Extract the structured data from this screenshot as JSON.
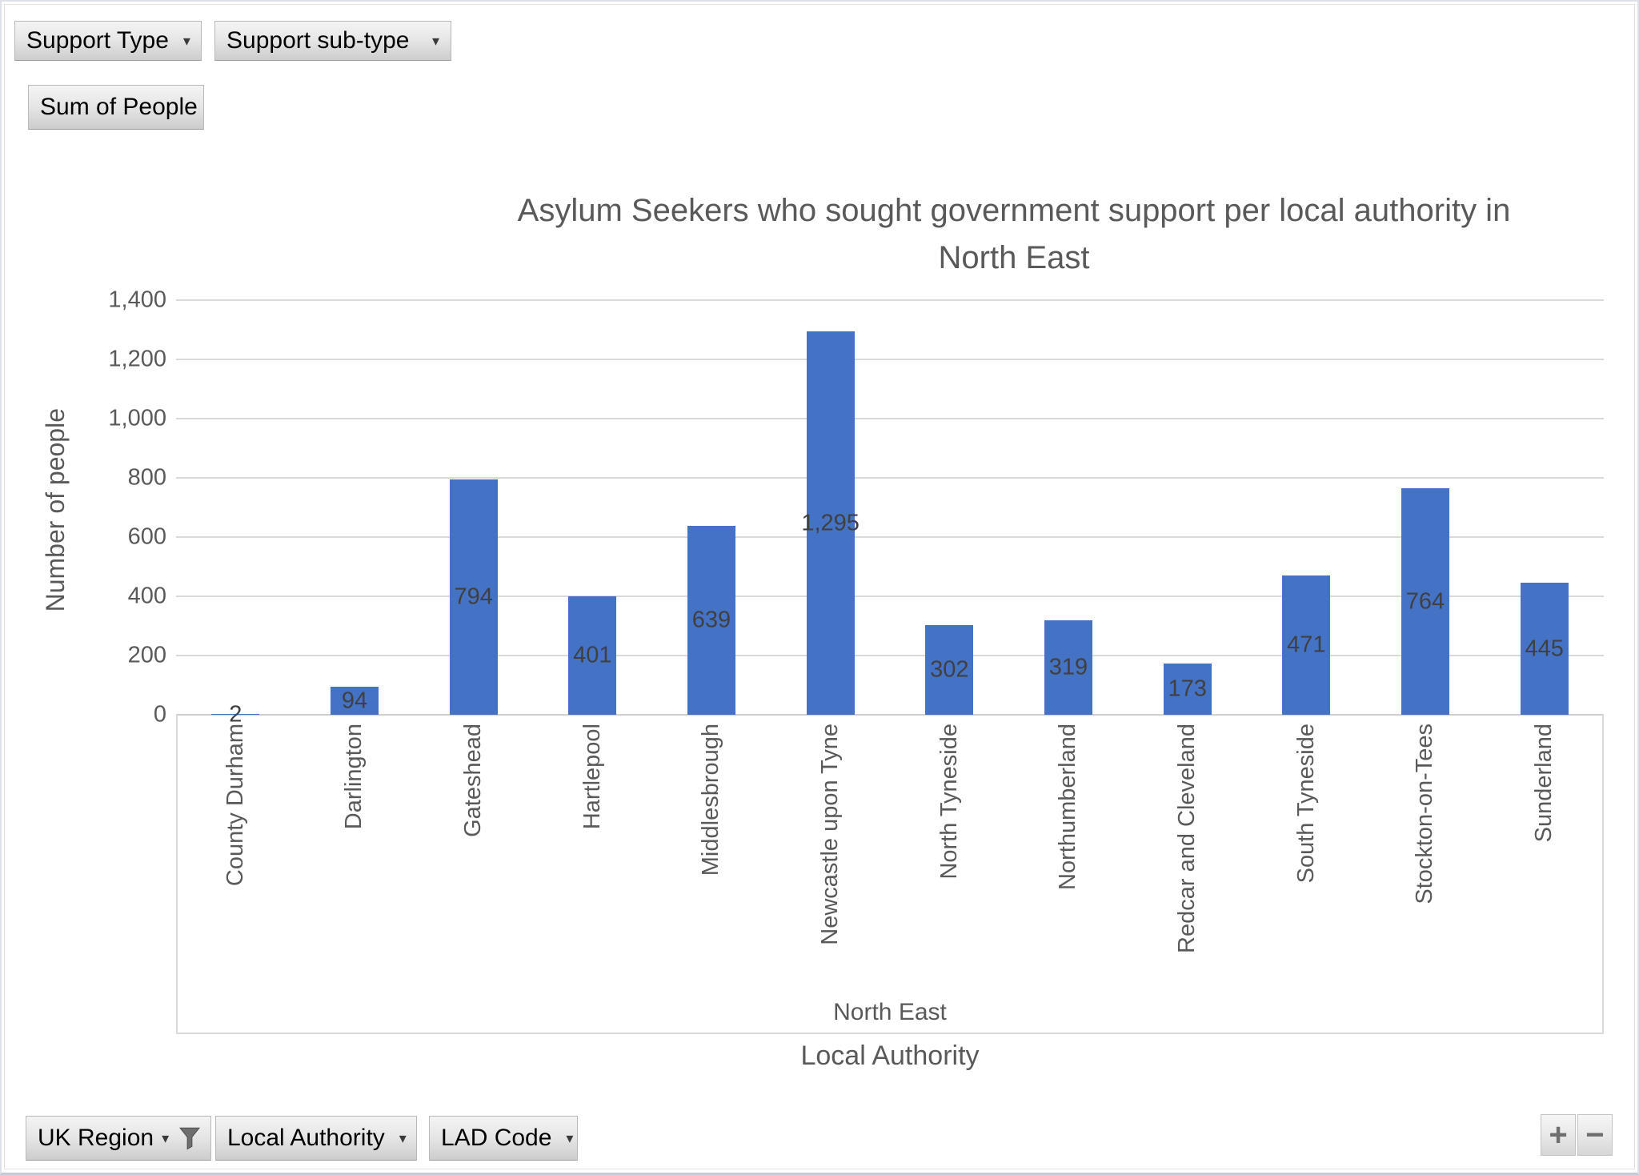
{
  "field_buttons": {
    "top": [
      {
        "label": "Support Type",
        "has_dropdown": true,
        "has_filter": false
      },
      {
        "label": "Support sub-type",
        "has_dropdown": true,
        "has_filter": false
      }
    ],
    "value_button": {
      "label": "Sum of People"
    },
    "bottom": [
      {
        "label": "UK Region",
        "has_dropdown": true,
        "has_filter": true
      },
      {
        "label": "Local Authority",
        "has_dropdown": true,
        "has_filter": false
      },
      {
        "label": "LAD Code",
        "has_dropdown": true,
        "has_filter": false
      }
    ],
    "expand_label": "+",
    "collapse_label": "−"
  },
  "icons": {
    "dropdown_arrow": "▾",
    "plus": "+",
    "minus": "−"
  },
  "chart_data": {
    "type": "bar",
    "title": "Asylum Seekers who sought government support per local authority in North East",
    "title_lines": [
      "Asylum Seekers who sought government support per local authority in",
      "North East"
    ],
    "categories": [
      "County Durham",
      "Darlington",
      "Gateshead",
      "Hartlepool",
      "Middlesbrough",
      "Newcastle upon Tyne",
      "North Tyneside",
      "Northumberland",
      "Redcar and Cleveland",
      "South Tyneside",
      "Stockton-on-Tees",
      "Sunderland"
    ],
    "values": [
      2,
      94,
      794,
      401,
      639,
      1295,
      302,
      319,
      173,
      471,
      764,
      445
    ],
    "data_labels": [
      "2",
      "94",
      "794",
      "401",
      "639",
      "1,295",
      "302",
      "319",
      "173",
      "471",
      "764",
      "445"
    ],
    "group_label": "North East",
    "xlabel": "Local Authority",
    "ylabel": "Number of people",
    "ylim": [
      0,
      1400
    ],
    "ytick_step": 200,
    "ytick_labels": [
      "0",
      "200",
      "400",
      "600",
      "800",
      "1,000",
      "1,200",
      "1,400"
    ],
    "grid": true,
    "legend": "none",
    "bar_color": "#4472C4",
    "gridline_color": "#D9D9D9",
    "data_label_color": "#404040",
    "axis_text_color": "#595959"
  }
}
